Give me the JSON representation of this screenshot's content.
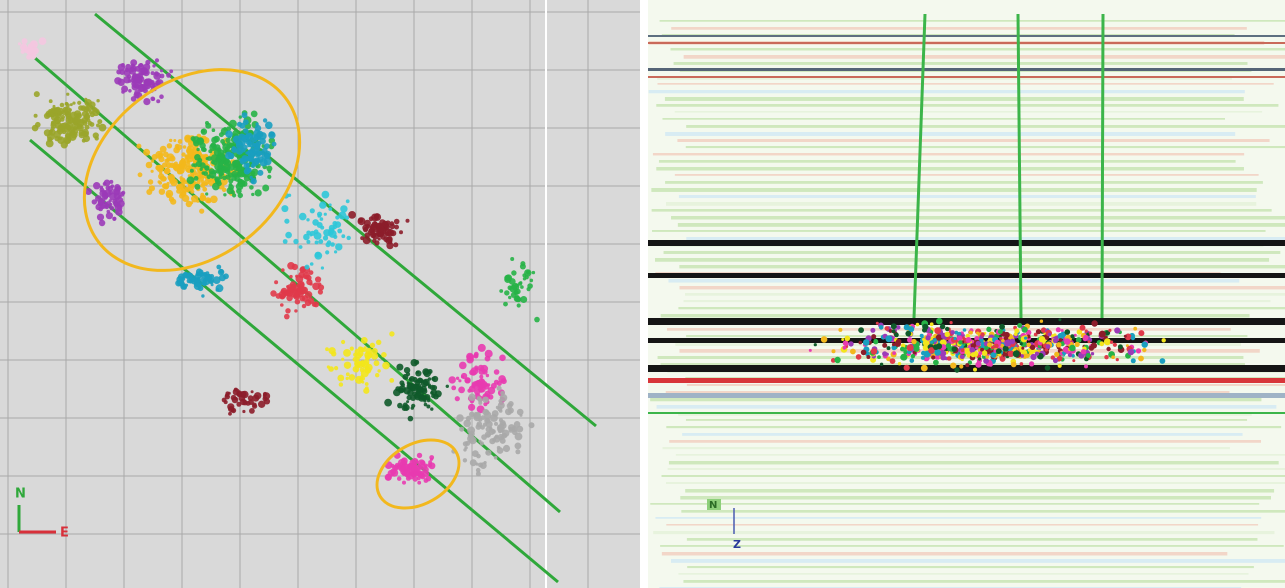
{
  "left_panel": {
    "compass": {
      "north": "N",
      "east": "E"
    }
  },
  "right_panel": {
    "axes": {
      "north": "N",
      "depth": "Z"
    }
  }
}
